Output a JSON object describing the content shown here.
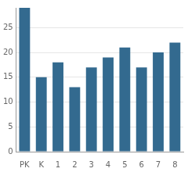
{
  "chart_data": {
    "type": "bar",
    "categories": [
      "PK",
      "K",
      "1",
      "2",
      "3",
      "4",
      "5",
      "6",
      "7",
      "8"
    ],
    "values": [
      29,
      15,
      18,
      13,
      17,
      19,
      21,
      17,
      20,
      22
    ],
    "color": "#336a8f",
    "ylim": [
      0,
      29
    ],
    "yticks": [
      0,
      5,
      10,
      15,
      20,
      25
    ],
    "grid": true
  }
}
